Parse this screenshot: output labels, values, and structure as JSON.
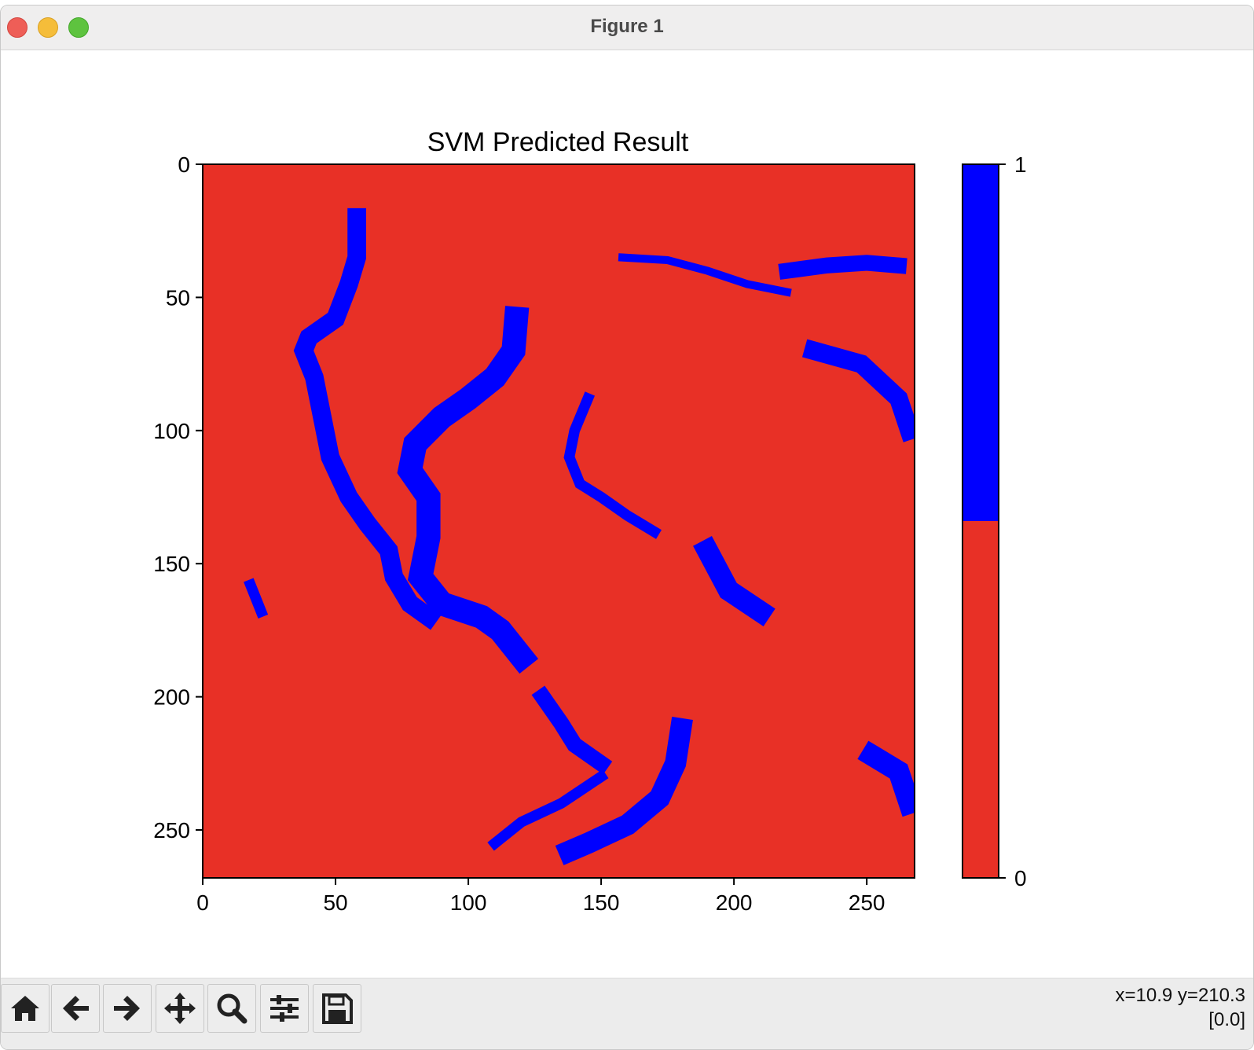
{
  "window": {
    "title": "Figure 1"
  },
  "chart_data": {
    "type": "heatmap",
    "title": "SVM Predicted Result",
    "xlabel": "",
    "ylabel": "",
    "image_size": [
      268,
      268
    ],
    "xlim": [
      0,
      268
    ],
    "ylim": [
      268,
      0
    ],
    "xticks": [
      0,
      50,
      100,
      150,
      200,
      250
    ],
    "yticks": [
      0,
      50,
      100,
      150,
      200,
      250
    ],
    "classes": [
      {
        "value": 0,
        "color": "#e83026"
      },
      {
        "value": 1,
        "color": "#0000ff"
      }
    ],
    "colorbar": {
      "ticks": [
        0,
        1
      ],
      "boundary": 0.5
    },
    "regions_value_1": [
      {
        "label": "long channel upper-left",
        "polyline": [
          [
            58,
            20
          ],
          [
            58,
            35
          ],
          [
            55,
            45
          ],
          [
            50,
            58
          ],
          [
            40,
            65
          ],
          [
            38,
            70
          ],
          [
            42,
            80
          ],
          [
            45,
            95
          ],
          [
            48,
            110
          ],
          [
            55,
            125
          ],
          [
            62,
            135
          ],
          [
            70,
            145
          ],
          [
            72,
            155
          ],
          [
            78,
            165
          ],
          [
            85,
            170
          ]
        ],
        "width": 7
      },
      {
        "label": "channel center-left",
        "polyline": [
          [
            118,
            58
          ],
          [
            117,
            70
          ],
          [
            110,
            80
          ],
          [
            100,
            88
          ],
          [
            90,
            95
          ],
          [
            80,
            105
          ],
          [
            78,
            115
          ],
          [
            85,
            125
          ],
          [
            85,
            140
          ],
          [
            82,
            155
          ],
          [
            90,
            165
          ],
          [
            105,
            170
          ],
          [
            112,
            175
          ],
          [
            120,
            185
          ]
        ],
        "width": 9
      },
      {
        "label": "lower-right water",
        "polyline": [
          [
            180,
            212
          ],
          [
            178,
            225
          ],
          [
            172,
            238
          ],
          [
            160,
            248
          ],
          [
            145,
            255
          ],
          [
            138,
            258
          ]
        ],
        "width": 8
      },
      {
        "label": "lower channel",
        "polyline": [
          [
            128,
            200
          ],
          [
            135,
            210
          ],
          [
            140,
            218
          ],
          [
            150,
            225
          ]
        ],
        "width": 6
      },
      {
        "label": "middle curve",
        "polyline": [
          [
            145,
            88
          ],
          [
            140,
            100
          ],
          [
            138,
            110
          ],
          [
            142,
            120
          ],
          [
            150,
            125
          ],
          [
            160,
            132
          ],
          [
            170,
            138
          ]
        ],
        "width": 4
      },
      {
        "label": "right arm",
        "polyline": [
          [
            190,
            145
          ],
          [
            198,
            160
          ],
          [
            210,
            168
          ]
        ],
        "width": 8
      },
      {
        "label": "top right lake",
        "polyline": [
          [
            220,
            40
          ],
          [
            235,
            38
          ],
          [
            250,
            37
          ],
          [
            262,
            38
          ]
        ],
        "width": 6
      },
      {
        "label": "top right channels",
        "polyline": [
          [
            158,
            35
          ],
          [
            175,
            36
          ],
          [
            190,
            40
          ],
          [
            205,
            45
          ],
          [
            220,
            48
          ]
        ],
        "width": 3
      },
      {
        "label": "right edge water",
        "polyline": [
          [
            230,
            70
          ],
          [
            248,
            75
          ],
          [
            262,
            88
          ],
          [
            266,
            100
          ]
        ],
        "width": 7
      },
      {
        "label": "lower bottom channel",
        "polyline": [
          [
            110,
            255
          ],
          [
            120,
            247
          ],
          [
            135,
            240
          ],
          [
            150,
            230
          ]
        ],
        "width": 4
      },
      {
        "label": "bottom right blob",
        "polyline": [
          [
            252,
            222
          ],
          [
            262,
            228
          ],
          [
            266,
            240
          ]
        ],
        "width": 8
      },
      {
        "label": "left small",
        "polyline": [
          [
            18,
            158
          ],
          [
            22,
            168
          ]
        ],
        "width": 4
      }
    ]
  },
  "toolbar": {
    "buttons": [
      {
        "name": "home-button",
        "icon": "home-icon"
      },
      {
        "name": "back-button",
        "icon": "arrow-left-icon"
      },
      {
        "name": "forward-button",
        "icon": "arrow-right-icon"
      },
      {
        "name": "pan-button",
        "icon": "move-icon"
      },
      {
        "name": "zoom-button",
        "icon": "magnifier-icon"
      },
      {
        "name": "configure-subplots-button",
        "icon": "sliders-icon"
      },
      {
        "name": "save-button",
        "icon": "floppy-disk-icon"
      }
    ],
    "coords_line1": "x=10.9 y=210.3",
    "coords_line2": "[0.0]"
  }
}
